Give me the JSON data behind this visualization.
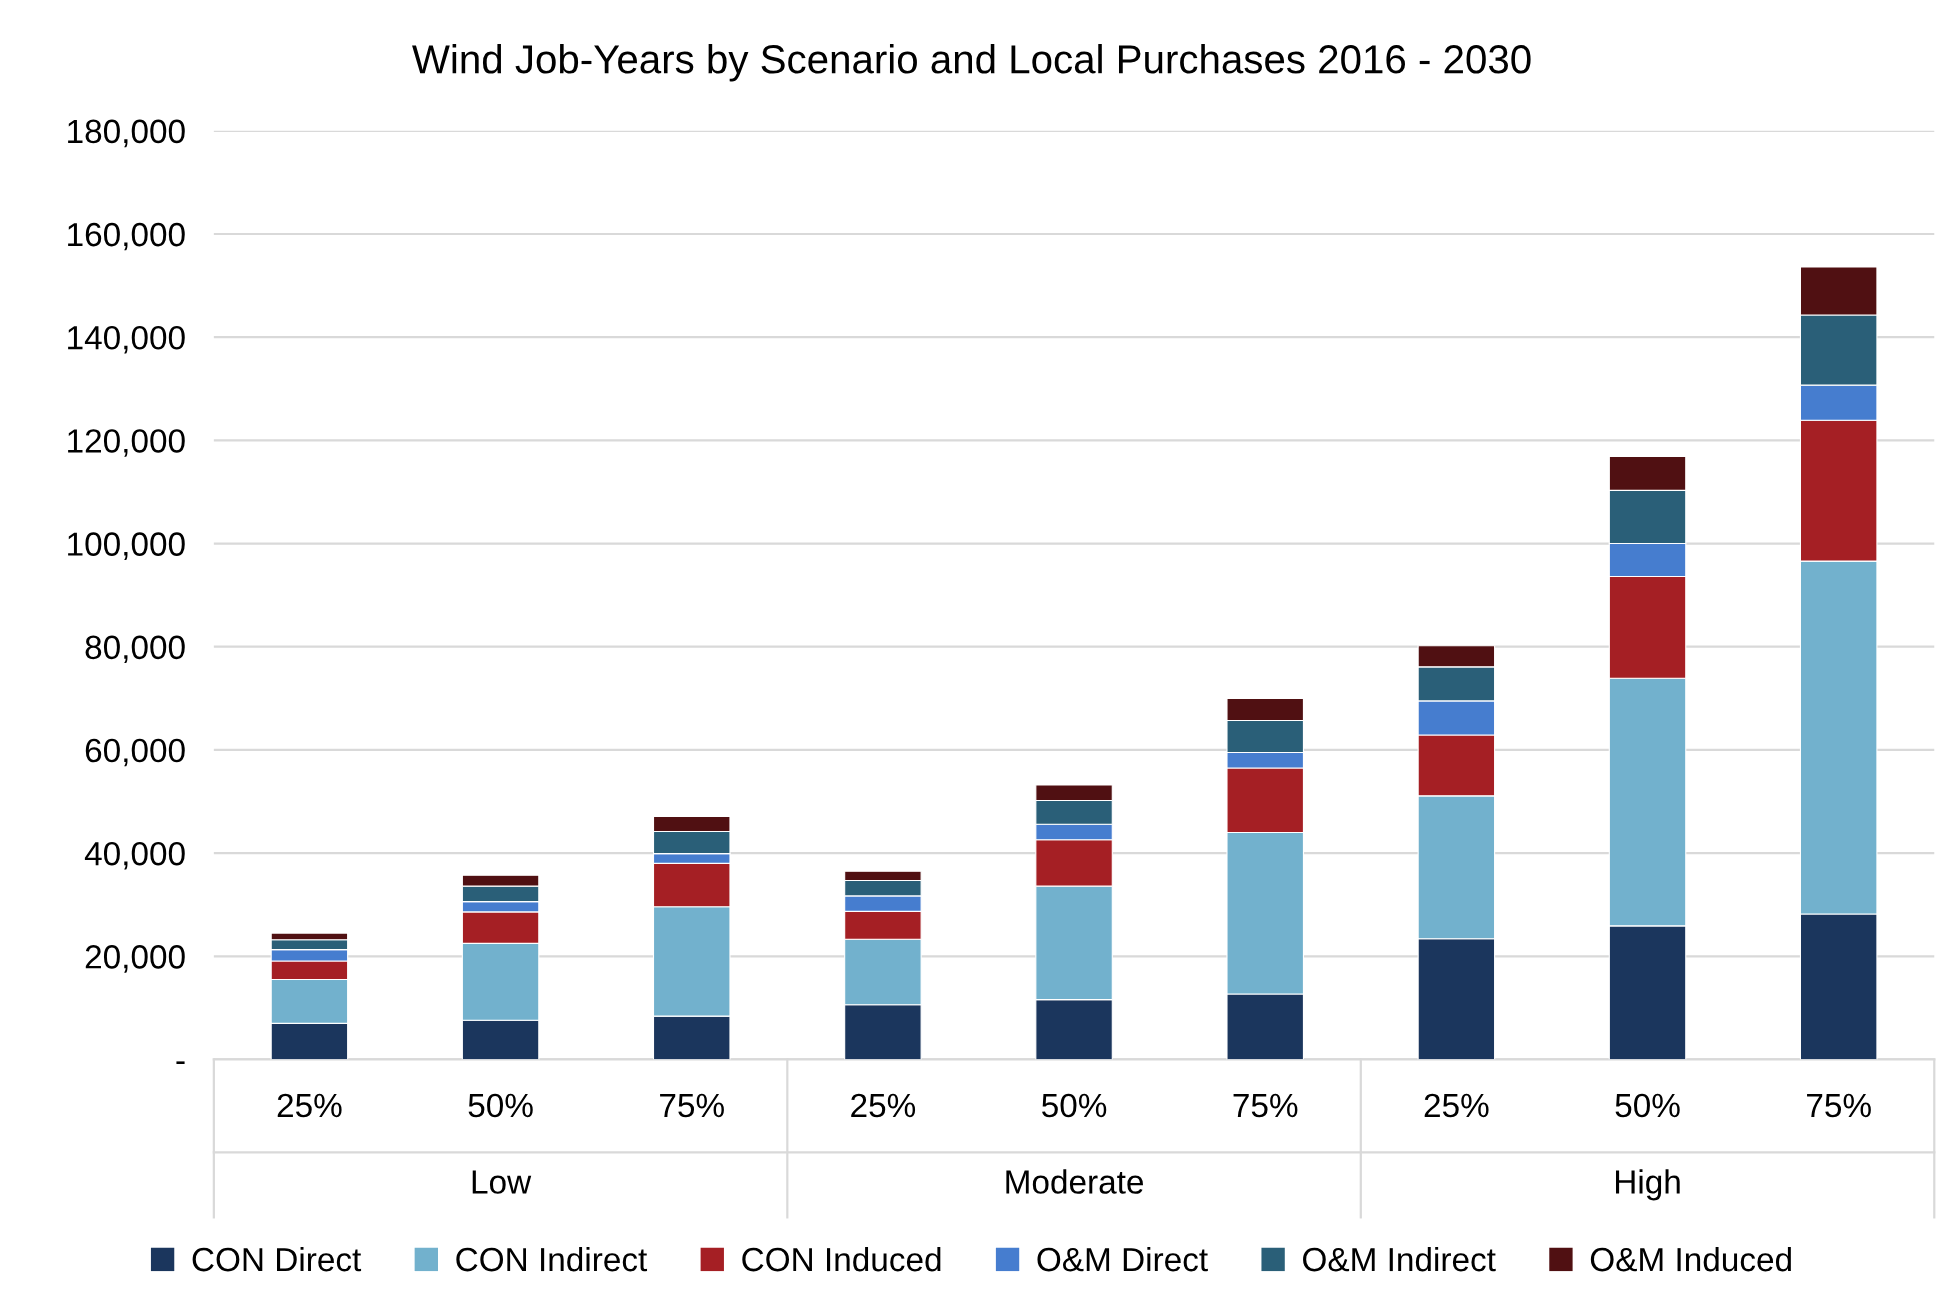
{
  "chart_data": {
    "type": "bar",
    "title": "Wind Job-Years by Scenario and Local Purchases 2016 - 2030",
    "stacked": true,
    "legend": "bottom",
    "grid": "y",
    "categories": [
      "25%",
      "50%",
      "75%",
      "25%",
      "50%",
      "75%",
      "25%",
      "50%",
      "75%"
    ],
    "annotations": [
      "Low",
      "Moderate",
      "High"
    ],
    "ylim": [
      0,
      180000
    ],
    "yticks": [
      {
        "value": 0,
        "label": "-"
      },
      {
        "value": 20000,
        "label": "20,000"
      },
      {
        "value": 40000,
        "label": "40,000"
      },
      {
        "value": 60000,
        "label": "60,000"
      },
      {
        "value": 80000,
        "label": "80,000"
      },
      {
        "value": 100000,
        "label": "100,000"
      },
      {
        "value": 120000,
        "label": "120,000"
      },
      {
        "value": 140000,
        "label": "140,000"
      },
      {
        "value": 160000,
        "label": "160,000"
      },
      {
        "value": 180000,
        "label": "180,000"
      }
    ],
    "series": [
      {
        "name": "CON Direct",
        "color": "#1b365d",
        "values": [
          7000,
          7600,
          8400,
          10600,
          11600,
          12700,
          23400,
          25900,
          28200
        ]
      },
      {
        "name": "CON Indirect",
        "color": "#72b1cd",
        "values": [
          8500,
          14900,
          21200,
          12700,
          22000,
          31300,
          27700,
          48000,
          68400
        ]
      },
      {
        "name": "CON Induced",
        "color": "#a51f24",
        "values": [
          3600,
          6100,
          8400,
          5400,
          9000,
          12500,
          11800,
          19700,
          27300
        ]
      },
      {
        "name": "O&M Direct",
        "color": "#467dcf",
        "values": [
          2200,
          2000,
          1900,
          3000,
          3000,
          3000,
          6600,
          6400,
          6800
        ]
      },
      {
        "name": "O&M Indirect",
        "color": "#2a5f78",
        "values": [
          1900,
          3000,
          4300,
          3000,
          4600,
          6200,
          6600,
          10300,
          13600
        ]
      },
      {
        "name": "O&M Induced",
        "color": "#501012",
        "values": [
          1300,
          2100,
          2900,
          1800,
          3000,
          4300,
          4100,
          6600,
          9300
        ]
      }
    ]
  }
}
